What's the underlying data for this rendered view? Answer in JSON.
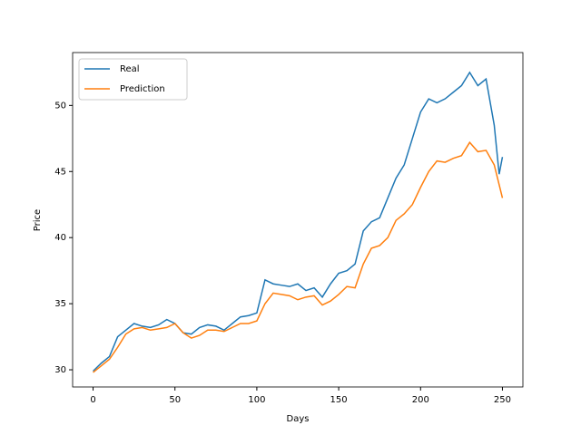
{
  "chart_data": {
    "type": "line",
    "x_label": "Days",
    "y_label": "Price",
    "x": [
      0,
      5,
      10,
      15,
      20,
      25,
      30,
      35,
      40,
      45,
      50,
      55,
      60,
      65,
      70,
      75,
      80,
      85,
      90,
      95,
      100,
      105,
      110,
      115,
      120,
      125,
      130,
      135,
      140,
      145,
      150,
      155,
      160,
      165,
      170,
      175,
      180,
      185,
      190,
      195,
      200,
      205,
      210,
      215,
      220,
      225,
      230,
      235,
      240,
      245,
      248,
      250
    ],
    "series": [
      {
        "name": "Real",
        "color": "#1f77b4",
        "values": [
          29.9,
          30.5,
          31.0,
          32.5,
          33.0,
          33.5,
          33.3,
          33.2,
          33.4,
          33.8,
          33.5,
          32.8,
          32.7,
          33.2,
          33.4,
          33.3,
          33.0,
          33.5,
          34.0,
          34.1,
          34.3,
          36.8,
          36.5,
          36.4,
          36.3,
          36.5,
          36.0,
          36.2,
          35.5,
          36.5,
          37.3,
          37.5,
          38.0,
          40.5,
          41.2,
          41.5,
          43.0,
          44.5,
          45.5,
          47.5,
          49.5,
          50.5,
          50.2,
          50.5,
          51.0,
          51.5,
          52.5,
          51.5,
          52.0,
          48.5,
          44.8,
          46.1
        ]
      },
      {
        "name": "Prediction",
        "color": "#ff7f0e",
        "values": [
          29.8,
          30.3,
          30.8,
          31.7,
          32.7,
          33.1,
          33.2,
          33.0,
          33.1,
          33.2,
          33.5,
          32.8,
          32.4,
          32.6,
          33.0,
          33.0,
          32.9,
          33.2,
          33.5,
          33.5,
          33.7,
          35.0,
          35.8,
          35.7,
          35.6,
          35.3,
          35.5,
          35.6,
          34.9,
          35.2,
          35.7,
          36.3,
          36.2,
          38.0,
          39.2,
          39.4,
          40.0,
          41.3,
          41.8,
          42.5,
          43.8,
          45.0,
          45.8,
          45.7,
          46.0,
          46.2,
          47.2,
          46.5,
          46.6,
          45.5,
          44.0,
          43.0
        ]
      }
    ],
    "xlim": [
      -12.5,
      262.5
    ],
    "ylim": [
      28.7,
      54.0
    ],
    "xticks": [
      0,
      50,
      100,
      150,
      200,
      250
    ],
    "yticks": [
      30,
      35,
      40,
      45,
      50
    ],
    "legend": "upper left"
  }
}
